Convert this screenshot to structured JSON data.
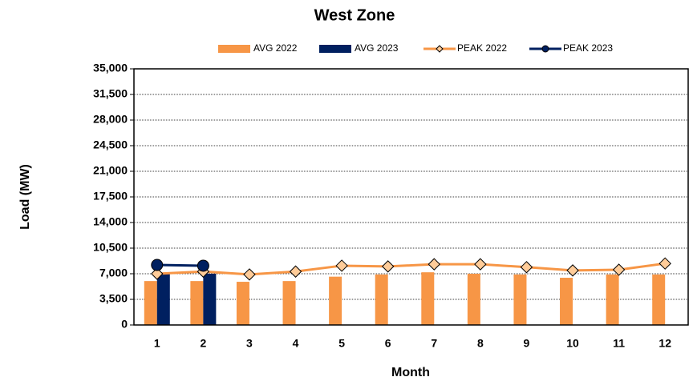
{
  "chart_data": {
    "type": "bar-line",
    "title": "West  Zone",
    "x_label": "Month",
    "y_label": "Load (MW)",
    "categories": [
      "1",
      "2",
      "3",
      "4",
      "5",
      "6",
      "7",
      "8",
      "9",
      "10",
      "11",
      "12"
    ],
    "series": [
      {
        "name": "AVG 2022",
        "type": "bar",
        "color": "#f79646",
        "values": [
          6000,
          6000,
          5900,
          6000,
          6600,
          6900,
          7200,
          7000,
          6900,
          6450,
          6900,
          6900
        ]
      },
      {
        "name": "AVG 2023",
        "type": "bar",
        "color": "#002060",
        "values": [
          7000,
          7000,
          null,
          null,
          null,
          null,
          null,
          null,
          null,
          null,
          null,
          null
        ]
      },
      {
        "name": "PEAK 2022",
        "type": "line",
        "marker": "diamond",
        "color": "#f79646",
        "values": [
          7000,
          7300,
          6900,
          7300,
          8100,
          8000,
          8300,
          8300,
          7900,
          7450,
          7550,
          8400
        ]
      },
      {
        "name": "PEAK 2023",
        "type": "line",
        "marker": "circle",
        "color": "#002060",
        "values": [
          8200,
          8100,
          null,
          null,
          null,
          null,
          null,
          null,
          null,
          null,
          null,
          null
        ]
      }
    ],
    "ylim": [
      0,
      35000
    ],
    "yticks": [
      0,
      {
        "value": 3500,
        "label": "3,500"
      },
      {
        "value": 7000,
        "label": "7,000"
      },
      {
        "value": 10500,
        "label": "10,500"
      },
      {
        "value": 14000,
        "label": "14,000"
      },
      {
        "value": 17500,
        "label": "17,500"
      },
      {
        "value": 21000,
        "label": "21,000"
      },
      {
        "value": 24500,
        "label": "24,500"
      },
      {
        "value": 28000,
        "label": "28,000"
      },
      {
        "value": 31500,
        "label": "31,500"
      },
      {
        "value": 35000,
        "label": "35,000"
      }
    ],
    "grid": true,
    "legend": "top"
  }
}
